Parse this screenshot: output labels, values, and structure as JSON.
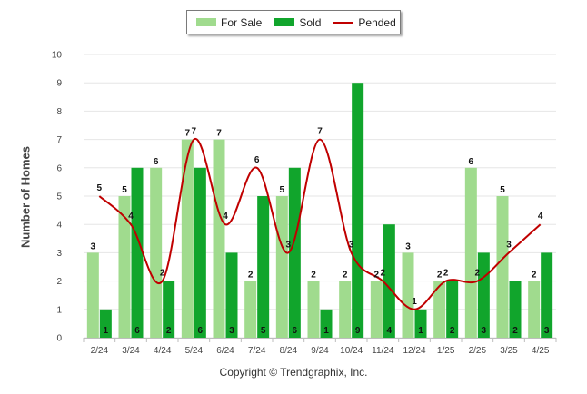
{
  "chart_data": {
    "type": "bar",
    "ylabel": "Number of Homes",
    "ylim": [
      0,
      10
    ],
    "yticks": [
      0,
      1,
      2,
      3,
      4,
      5,
      6,
      7,
      8,
      9,
      10
    ],
    "grid": true,
    "legend_position": "top-center",
    "categories": [
      "2/24",
      "3/24",
      "4/24",
      "5/24",
      "6/24",
      "7/24",
      "8/24",
      "9/24",
      "10/24",
      "11/24",
      "12/24",
      "1/25",
      "2/25",
      "3/25",
      "4/25"
    ],
    "series": [
      {
        "name": "For Sale",
        "kind": "bar",
        "color": "#a0db8e",
        "values": [
          3,
          5,
          6,
          7,
          7,
          2,
          5,
          2,
          2,
          2,
          3,
          2,
          6,
          5,
          2
        ]
      },
      {
        "name": "Sold",
        "kind": "bar",
        "color": "#11a52c",
        "values": [
          1,
          6,
          2,
          6,
          3,
          5,
          6,
          1,
          9,
          4,
          1,
          2,
          3,
          2,
          3
        ]
      },
      {
        "name": "Pended",
        "kind": "line",
        "color": "#c00000",
        "values": [
          5,
          4,
          2,
          7,
          4,
          6,
          3,
          7,
          3,
          2,
          1,
          2,
          2,
          3,
          4
        ]
      }
    ]
  },
  "copyright": "Copyright © Trendgraphix, Inc."
}
